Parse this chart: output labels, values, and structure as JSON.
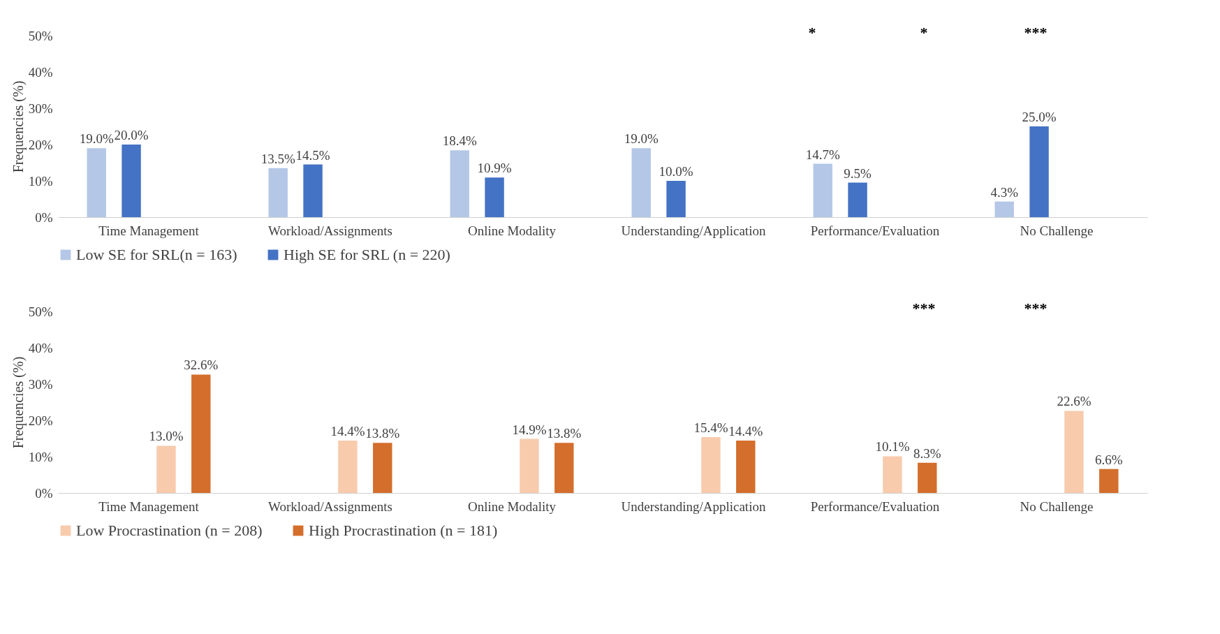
{
  "chart_data": [
    {
      "type": "bar",
      "ylabel": "Frequencies (%)",
      "categories": [
        "Time Management",
        "Workload/Assignments",
        "Online Modality",
        "Understanding/Application",
        "Performance/Evaluation",
        "No Challenge"
      ],
      "series": [
        {
          "name": "Low SE for SRL(n = 163)",
          "color": "#b4c7e7",
          "values": [
            19.0,
            13.5,
            18.4,
            19.0,
            14.7,
            4.3
          ],
          "value_labels": [
            "19.0%",
            "13.5%",
            "18.4%",
            "19.0%",
            "14.7%",
            "4.3%"
          ]
        },
        {
          "name": "High SE for SRL (n = 220)",
          "color": "#4472c4",
          "values": [
            20.0,
            14.5,
            10.9,
            10.0,
            9.5,
            25.0
          ],
          "value_labels": [
            "20.0%",
            "14.5%",
            "10.9%",
            "10.0%",
            "9.5%",
            "25.0%"
          ]
        }
      ],
      "ylim": [
        0,
        50
      ],
      "yticks": [
        {
          "value": 0,
          "label": "0%"
        },
        {
          "value": 10,
          "label": "10%"
        },
        {
          "value": 20,
          "label": "20%"
        },
        {
          "value": 30,
          "label": "30%"
        },
        {
          "value": 40,
          "label": "40%"
        },
        {
          "value": 50,
          "label": "50%"
        }
      ],
      "grid": false,
      "legend": "bottom",
      "annotations": [
        "*",
        "*",
        "***"
      ]
    },
    {
      "type": "bar",
      "ylabel": "Frequencies (%)",
      "categories": [
        "Time Management",
        "Workload/Assignments",
        "Online Modality",
        "Understanding/Application",
        "Performance/Evaluation",
        "No Challenge"
      ],
      "series": [
        {
          "name": "Low Procrastination (n = 208)",
          "color": "#f8cbad",
          "values": [
            13.0,
            14.4,
            14.9,
            15.4,
            10.1,
            22.6
          ],
          "value_labels": [
            "13.0%",
            "14.4%",
            "14.9%",
            "15.4%",
            "10.1%",
            "22.6%"
          ]
        },
        {
          "name": "High Procrastination (n = 181)",
          "color": "#d46e2c",
          "values": [
            32.6,
            13.8,
            13.8,
            14.4,
            8.3,
            6.6
          ],
          "value_labels": [
            "32.6%",
            "13.8%",
            "13.8%",
            "14.4%",
            "8.3%",
            "6.6%"
          ]
        }
      ],
      "ylim": [
        0,
        50
      ],
      "yticks": [
        {
          "value": 0,
          "label": "0%"
        },
        {
          "value": 10,
          "label": "10%"
        },
        {
          "value": 20,
          "label": "20%"
        },
        {
          "value": 30,
          "label": "30%"
        },
        {
          "value": 40,
          "label": "40%"
        },
        {
          "value": 50,
          "label": "50%"
        }
      ],
      "grid": false,
      "legend": "bottom",
      "annotations": [
        "***",
        "***"
      ]
    }
  ]
}
